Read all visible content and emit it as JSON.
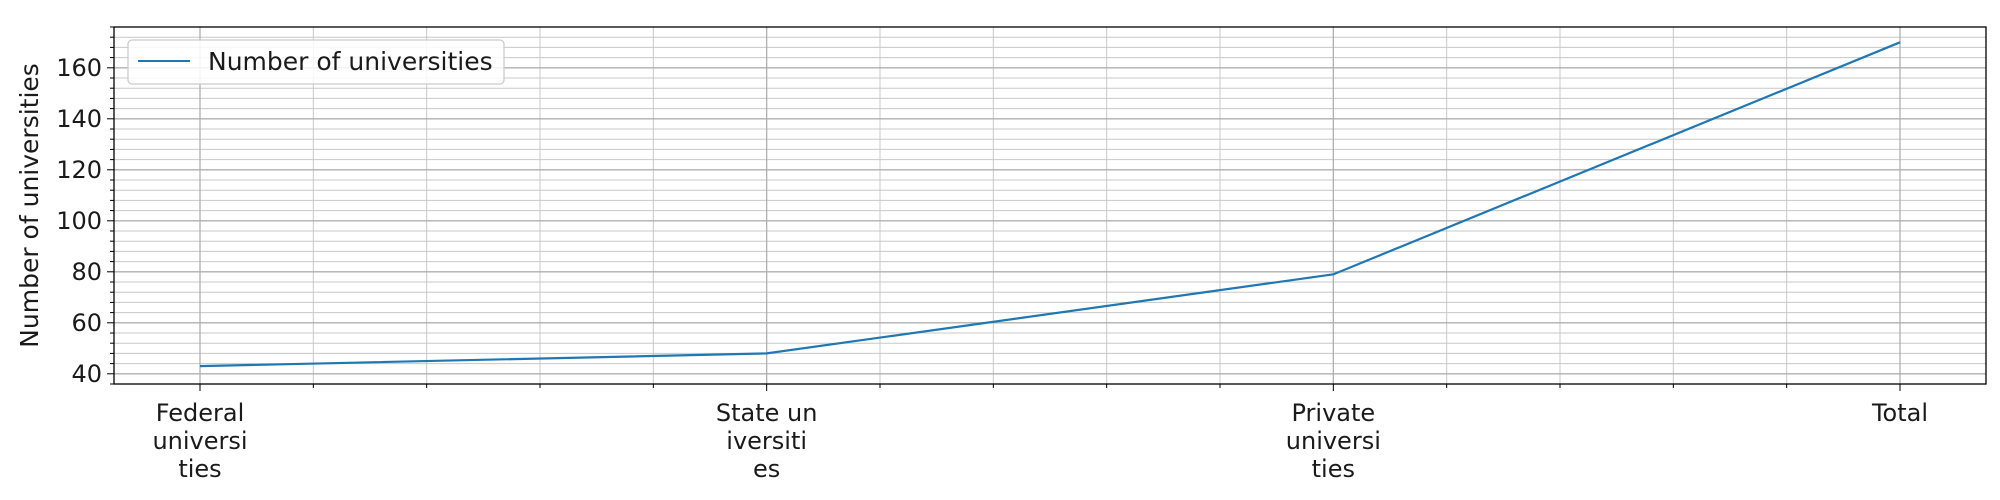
{
  "chart_data": {
    "type": "line",
    "categories": [
      "Federal universities",
      "State universities",
      "Private universities",
      "Total"
    ],
    "category_tick_lines": [
      [
        "Federal",
        "universi",
        "ties"
      ],
      [
        "State un",
        "iversiti",
        "es"
      ],
      [
        "Private",
        "universi",
        "ties"
      ],
      [
        "Total"
      ]
    ],
    "series": [
      {
        "name": "Number of universities",
        "values": [
          43,
          48,
          79,
          170
        ],
        "color": "#1f77b4"
      }
    ],
    "xlabel": "",
    "ylabel": "Number of universities",
    "ylim": [
      36,
      176
    ],
    "yticks": [
      "40",
      "60",
      "80",
      "100",
      "120",
      "140",
      "160"
    ],
    "grid": true,
    "minor_grid": true,
    "legend_position": "top-left"
  }
}
